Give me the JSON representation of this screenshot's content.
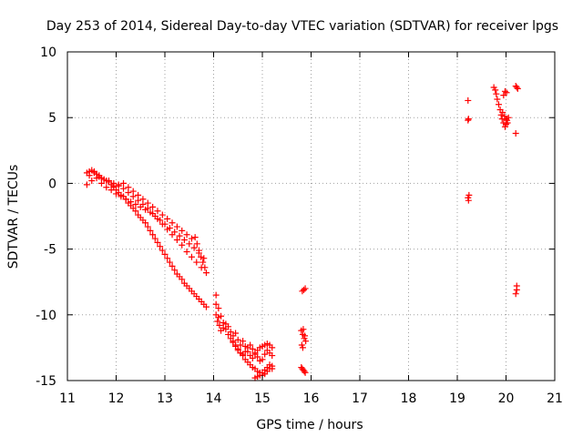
{
  "chart_data": {
    "type": "scatter",
    "title": "Day 253 of 2014, Sidereal Day-to-day VTEC variation (SDTVAR) for receiver lpgs",
    "xlabel": "GPS time / hours",
    "ylabel": "SDTVAR / TECUs",
    "xlim": [
      11,
      21
    ],
    "ylim": [
      -15,
      10
    ],
    "x_ticks": [
      "11",
      "12",
      "13",
      "14",
      "15",
      "16",
      "17",
      "18",
      "19",
      "20",
      "21"
    ],
    "y_ticks": [
      "10",
      "5",
      "0",
      "-5",
      "-10",
      "-15"
    ],
    "grid": true,
    "marker": "+",
    "series": [
      {
        "name": "SDTVAR",
        "color": "#ff0000",
        "x": [
          11.4,
          11.45,
          11.5,
          11.55,
          11.6,
          11.65,
          11.7,
          11.75,
          11.8,
          11.85,
          11.9,
          11.95,
          12.0,
          12.05,
          12.1,
          12.15,
          12.2,
          12.25,
          12.3,
          12.35,
          12.4,
          12.45,
          12.5,
          12.55,
          12.6,
          12.65,
          12.7,
          12.75,
          12.8,
          12.85,
          12.9,
          12.95,
          13.0,
          13.05,
          13.1,
          13.15,
          13.2,
          13.25,
          13.3,
          13.35,
          13.4,
          13.45,
          13.5,
          13.55,
          13.6,
          13.65,
          13.7,
          13.75,
          13.8,
          13.85,
          11.45,
          11.55,
          11.65,
          11.75,
          11.85,
          11.95,
          12.05,
          12.15,
          12.25,
          12.35,
          12.45,
          12.55,
          12.65,
          12.75,
          12.85,
          12.95,
          13.05,
          13.15,
          13.25,
          13.35,
          13.45,
          13.55,
          13.65,
          13.75,
          13.85,
          11.4,
          11.5,
          11.6,
          11.7,
          11.8,
          11.9,
          12.0,
          12.1,
          12.2,
          12.3,
          12.4,
          12.5,
          12.6,
          12.7,
          12.8,
          12.9,
          13.0,
          13.1,
          13.2,
          13.3,
          13.4,
          13.5,
          13.6,
          13.7,
          13.8,
          11.95,
          12.05,
          12.15,
          12.25,
          12.35,
          12.45,
          12.55,
          12.65,
          12.75,
          12.85,
          12.95,
          13.05,
          13.15,
          13.25,
          13.35,
          13.45,
          13.55,
          13.62,
          13.66,
          13.7,
          13.74,
          13.78,
          13.82,
          14.05,
          14.05,
          14.05,
          14.08,
          14.1,
          14.12,
          14.15,
          14.2,
          14.25,
          14.3,
          14.35,
          14.4,
          14.45,
          14.5,
          14.55,
          14.6,
          14.65,
          14.7,
          14.75,
          14.8,
          14.85,
          14.9,
          14.95,
          15.0,
          15.05,
          15.1,
          15.15,
          15.2,
          14.1,
          14.15,
          14.2,
          14.25,
          14.3,
          14.35,
          14.4,
          14.45,
          14.5,
          14.55,
          14.6,
          14.65,
          14.7,
          14.75,
          14.8,
          14.85,
          14.9,
          14.95,
          15.0,
          15.05,
          15.1,
          15.15,
          15.2,
          14.4,
          14.45,
          14.5,
          14.55,
          14.6,
          14.65,
          14.7,
          14.75,
          14.8,
          14.85,
          14.9,
          14.95,
          15.0,
          15.05,
          15.1,
          15.15,
          15.2,
          14.85,
          14.9,
          14.95,
          15.0,
          15.05,
          15.1,
          15.15,
          15.2,
          15.82,
          15.85,
          15.88,
          15.8,
          15.83,
          15.86,
          15.89,
          15.81,
          15.84,
          15.87,
          15.8,
          15.84,
          15.88,
          15.82,
          15.86,
          15.83,
          19.22,
          19.23,
          19.22,
          19.24,
          19.22,
          19.23,
          19.75,
          19.78,
          19.8,
          19.82,
          19.85,
          19.88,
          19.9,
          19.92,
          19.95,
          19.98,
          20.0,
          20.02,
          20.05,
          19.93,
          19.97,
          20.0,
          20.03,
          19.95,
          19.98,
          20.01,
          20.2,
          20.22,
          20.24,
          20.2,
          20.22,
          20.22,
          20.2
        ],
        "y": [
          0.8,
          0.9,
          1.0,
          0.9,
          0.7,
          0.6,
          0.4,
          0.3,
          0.2,
          0.1,
          -0.1,
          -0.3,
          -0.5,
          -0.7,
          -0.9,
          -1.0,
          -1.2,
          -1.5,
          -1.7,
          -1.9,
          -2.1,
          -2.4,
          -2.6,
          -2.8,
          -3.0,
          -3.3,
          -3.6,
          -3.9,
          -4.2,
          -4.5,
          -4.8,
          -5.1,
          -5.4,
          -5.7,
          -6.0,
          -6.3,
          -6.6,
          -6.9,
          -7.1,
          -7.3,
          -7.6,
          -7.8,
          -8.0,
          -8.2,
          -8.4,
          -8.6,
          -8.8,
          -9.0,
          -9.2,
          -9.4,
          0.6,
          0.8,
          0.5,
          0.3,
          0.2,
          0.0,
          -0.2,
          -0.4,
          -0.7,
          -1.0,
          -1.3,
          -1.6,
          -1.9,
          -2.3,
          -2.7,
          -3.1,
          -3.5,
          -3.9,
          -4.3,
          -4.7,
          -5.2,
          -5.6,
          -6.0,
          -6.4,
          -6.8,
          -0.1,
          0.2,
          0.4,
          0.0,
          -0.3,
          -0.5,
          -0.8,
          -1.0,
          -1.2,
          -1.4,
          -1.6,
          -1.8,
          -2.0,
          -2.2,
          -2.5,
          -2.8,
          -3.1,
          -3.4,
          -3.7,
          -4.0,
          -4.3,
          -4.6,
          -4.9,
          -5.3,
          -5.7,
          -0.2,
          -0.1,
          0.0,
          -0.3,
          -0.6,
          -0.9,
          -1.2,
          -1.5,
          -1.8,
          -2.1,
          -2.4,
          -2.7,
          -3.0,
          -3.3,
          -3.6,
          -3.9,
          -4.2,
          -4.1,
          -4.6,
          -5.1,
          -5.6,
          -6.0,
          -6.4,
          -8.5,
          -9.2,
          -10.0,
          -10.5,
          -10.2,
          -10.8,
          -11.2,
          -11.0,
          -10.7,
          -10.9,
          -11.3,
          -11.6,
          -11.4,
          -11.9,
          -12.3,
          -12.0,
          -12.4,
          -12.8,
          -13.1,
          -13.3,
          -13.0,
          -12.7,
          -12.5,
          -12.4,
          -12.3,
          -12.2,
          -12.3,
          -12.5,
          -9.5,
          -10.1,
          -10.6,
          -11.1,
          -11.5,
          -11.8,
          -12.1,
          -12.4,
          -12.7,
          -12.9,
          -13.0,
          -12.8,
          -12.5,
          -12.3,
          -12.6,
          -12.9,
          -13.2,
          -13.5,
          -13.4,
          -13.0,
          -12.7,
          -12.9,
          -13.1,
          -12.0,
          -12.3,
          -12.6,
          -12.9,
          -13.1,
          -13.4,
          -13.6,
          -13.8,
          -14.0,
          -14.1,
          -14.3,
          -14.4,
          -14.6,
          -14.5,
          -14.3,
          -14.1,
          -13.9,
          -14.8,
          -14.7,
          -14.6,
          -14.4,
          -14.2,
          -14.0,
          -13.8,
          -14.1,
          -8.2,
          -8.1,
          -8.0,
          -11.2,
          -11.5,
          -11.8,
          -12.0,
          -12.3,
          -11.1,
          -11.6,
          -14.0,
          -14.2,
          -14.4,
          -14.1,
          -14.3,
          -12.5,
          6.3,
          4.9,
          4.8,
          -0.9,
          -1.1,
          -1.3,
          7.3,
          7.1,
          6.8,
          6.4,
          6.0,
          5.6,
          5.2,
          4.9,
          4.6,
          4.3,
          4.5,
          4.8,
          5.0,
          5.4,
          5.1,
          4.9,
          4.6,
          6.7,
          7.0,
          6.9,
          7.4,
          7.3,
          7.2,
          3.8,
          -7.8,
          -8.1,
          -8.4
        ]
      }
    ]
  }
}
